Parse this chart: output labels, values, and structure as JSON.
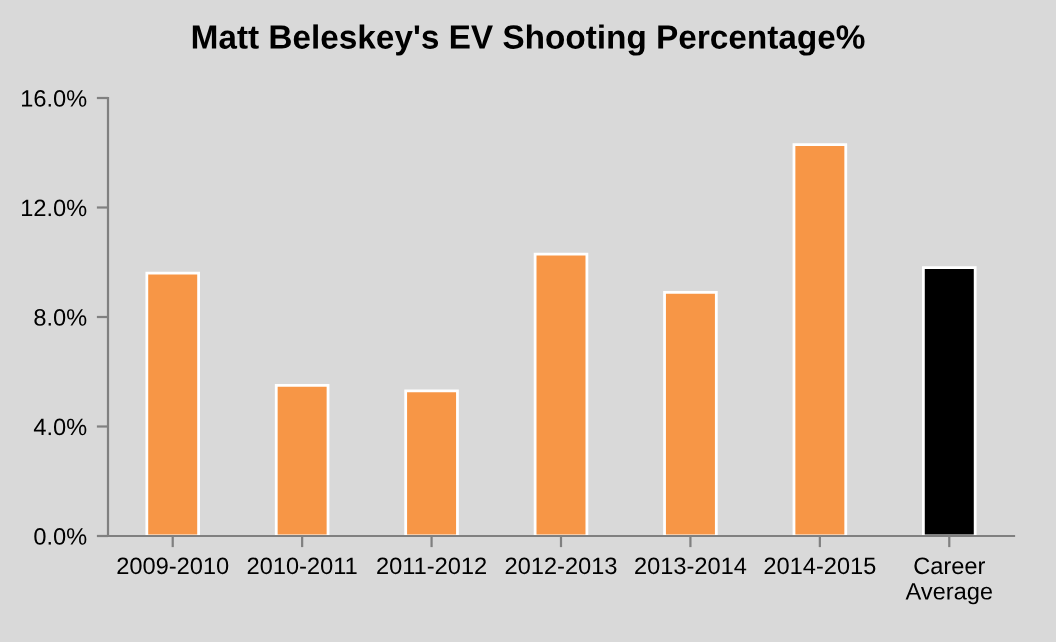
{
  "chart_data": {
    "type": "bar",
    "title": "Matt Beleskey's EV Shooting Percentage%",
    "categories": [
      "2009-2010",
      "2010-2011",
      "2011-2012",
      "2012-2013",
      "2013-2014",
      "2014-2015",
      "Career\nAverage"
    ],
    "values": [
      9.6,
      5.5,
      5.3,
      10.3,
      8.9,
      14.3,
      9.8
    ],
    "colors": [
      "#f79646",
      "#f79646",
      "#f79646",
      "#f79646",
      "#f79646",
      "#f79646",
      "#000000"
    ],
    "ylim": [
      0,
      16
    ],
    "yticks": [
      {
        "value": 0,
        "label": "0.0%"
      },
      {
        "value": 4,
        "label": "4.0%"
      },
      {
        "value": 8,
        "label": "8.0%"
      },
      {
        "value": 12,
        "label": "12.0%"
      },
      {
        "value": 16,
        "label": "16.0%"
      }
    ],
    "grid": false,
    "legend": false
  }
}
